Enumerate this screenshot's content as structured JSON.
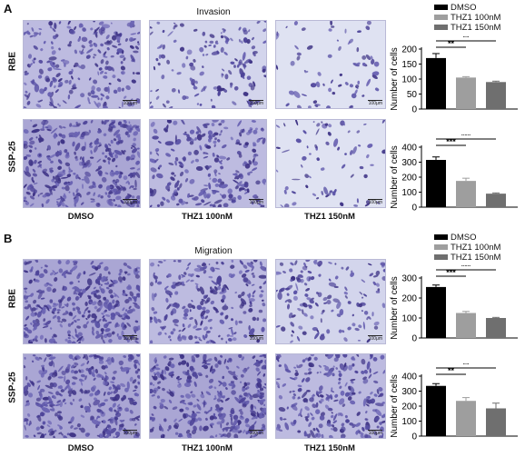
{
  "panels": [
    {
      "label": "A",
      "title": "Invasion",
      "rows": [
        "RBE",
        "SSP-25"
      ],
      "columns": [
        "DMSO",
        "THZ1 100nM",
        "THZ1 150nM"
      ],
      "scale_text": "100μm"
    },
    {
      "label": "B",
      "title": "Migration",
      "rows": [
        "RBE",
        "SSP-25"
      ],
      "columns": [
        "DMSO",
        "THZ1 100nM",
        "THZ1 150nM"
      ],
      "scale_text": "100μm"
    }
  ],
  "legend": {
    "items": [
      {
        "label": "DMSO",
        "color": "#000000"
      },
      {
        "label": "THZ1 100nM",
        "color": "#9e9e9e"
      },
      {
        "label": "THZ1 150nM",
        "color": "#6f6f6f"
      }
    ]
  },
  "colors": {
    "cell": "#4a3f8f",
    "background_light": "#d9dcef",
    "background_dense": "#b3b1d6"
  },
  "chart_data": [
    {
      "type": "bar",
      "panel": "A",
      "row": "RBE",
      "ylabel": "Number of cells",
      "ylim": [
        0,
        200
      ],
      "yticks": [
        0,
        50,
        100,
        150,
        200
      ],
      "categories": [
        "DMSO",
        "THZ1 100nM",
        "THZ1 150nM"
      ],
      "values": [
        170,
        105,
        90
      ],
      "errors": [
        15,
        3,
        3
      ],
      "significance": [
        "**",
        "**"
      ]
    },
    {
      "type": "bar",
      "panel": "A",
      "row": "SSP-25",
      "ylabel": "Number of cells",
      "ylim": [
        0,
        400
      ],
      "yticks": [
        0,
        100,
        200,
        300,
        400
      ],
      "categories": [
        "DMSO",
        "THZ1 100nM",
        "THZ1 150nM"
      ],
      "values": [
        315,
        175,
        90
      ],
      "errors": [
        20,
        18,
        5
      ],
      "significance": [
        "***",
        "***"
      ]
    },
    {
      "type": "bar",
      "panel": "B",
      "row": "RBE",
      "ylabel": "Number of cells",
      "ylim": [
        0,
        300
      ],
      "yticks": [
        0,
        100,
        200,
        300
      ],
      "categories": [
        "DMSO",
        "THZ1 100nM",
        "THZ1 150nM"
      ],
      "values": [
        255,
        125,
        100
      ],
      "errors": [
        10,
        8,
        3
      ],
      "significance": [
        "***",
        "***"
      ]
    },
    {
      "type": "bar",
      "panel": "B",
      "row": "SSP-25",
      "ylabel": "Number of cells",
      "ylim": [
        0,
        400
      ],
      "yticks": [
        0,
        100,
        200,
        300,
        400
      ],
      "categories": [
        "DMSO",
        "THZ1 100nM",
        "THZ1 150nM"
      ],
      "values": [
        335,
        235,
        185
      ],
      "errors": [
        15,
        22,
        35
      ],
      "significance": [
        "**",
        "**"
      ]
    }
  ]
}
